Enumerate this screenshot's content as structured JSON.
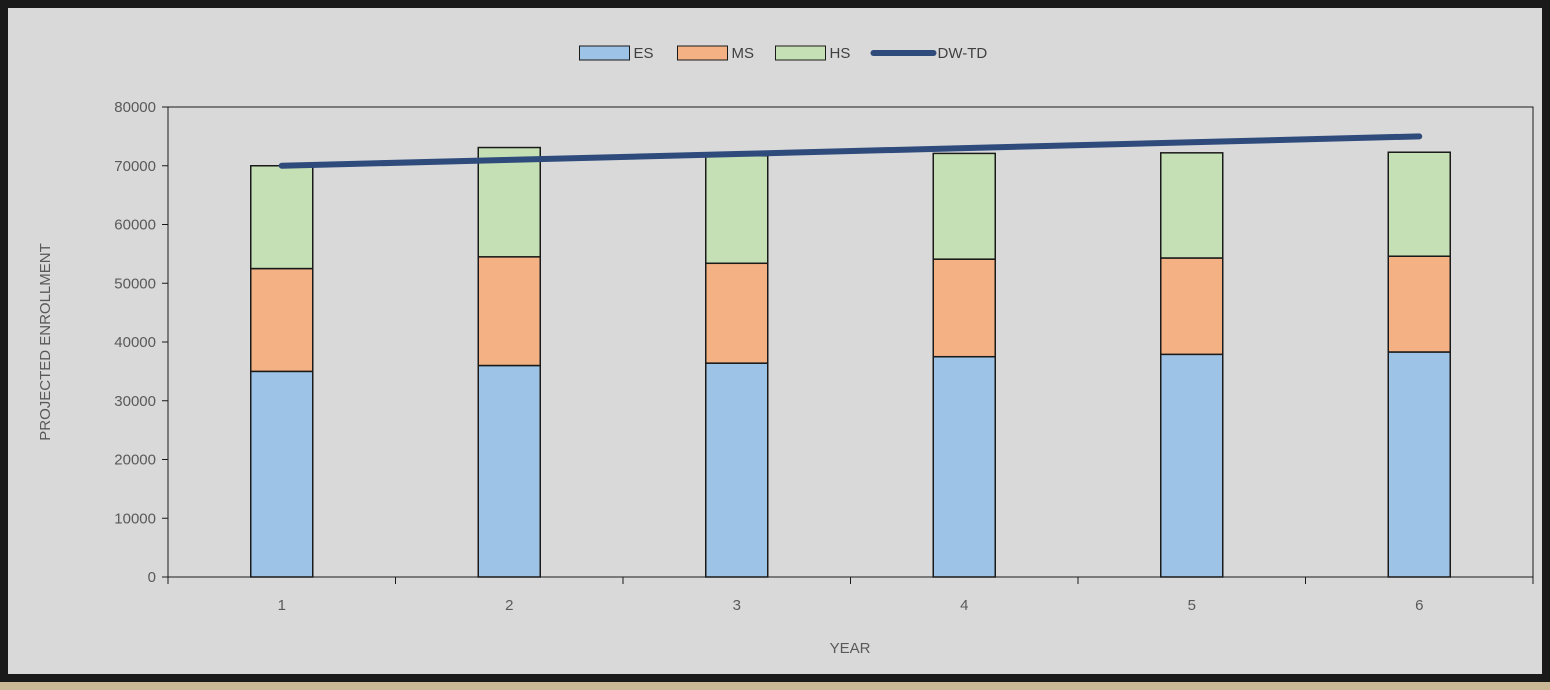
{
  "chart_data": {
    "type": "bar",
    "stacked": true,
    "categories": [
      "1",
      "2",
      "3",
      "4",
      "5",
      "6"
    ],
    "series": [
      {
        "name": "ES",
        "type": "bar",
        "color": "#9dc3e6",
        "values": [
          35000,
          36000,
          36400,
          37500,
          37900,
          38300
        ]
      },
      {
        "name": "MS",
        "type": "bar",
        "color": "#f4b183",
        "values": [
          17500,
          18500,
          17000,
          16600,
          16400,
          16300
        ]
      },
      {
        "name": "HS",
        "type": "bar",
        "color": "#c5e0b4",
        "values": [
          17500,
          18600,
          18300,
          18000,
          17900,
          17700
        ]
      },
      {
        "name": "DW-TD",
        "type": "line",
        "color": "#2f4b7c",
        "values": [
          70000,
          71000,
          72000,
          73000,
          74000,
          75000
        ]
      }
    ],
    "xlabel": "YEAR",
    "ylabel": "PROJECTED ENROLLMENT",
    "ylim": [
      0,
      80000
    ],
    "yticks": [
      0,
      10000,
      20000,
      30000,
      40000,
      50000,
      60000,
      70000,
      80000
    ],
    "legend_position": "top-center",
    "grid": false
  }
}
